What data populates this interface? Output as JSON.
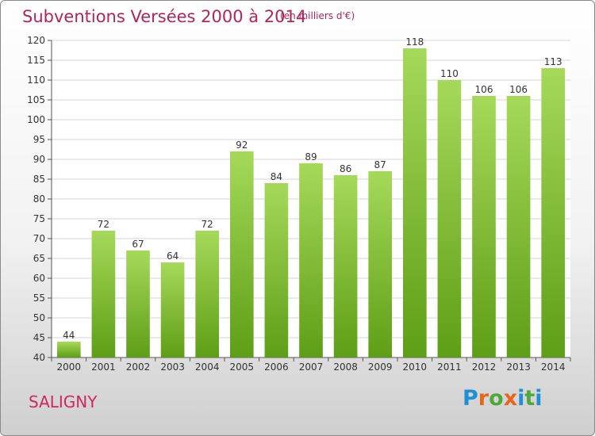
{
  "header": {
    "title": "Subventions Versées 2000 à 2014",
    "unit": "(en milliers d'€)"
  },
  "footer": {
    "commune": "SALIGNY",
    "brand_letters": [
      {
        "char": "P",
        "color": "#1f8fd6"
      },
      {
        "char": "r",
        "color": "#e8661a"
      },
      {
        "char": "o",
        "color": "#4fa83a"
      },
      {
        "char": "x",
        "color": "#e8661a"
      },
      {
        "char": "i",
        "color": "#1f8fd6"
      },
      {
        "char": "t",
        "color": "#4fa83a"
      },
      {
        "char": "i",
        "color": "#1f8fd6"
      }
    ]
  },
  "colors": {
    "title": "#b3245a",
    "bar_top": "#a6d95a",
    "bar_bottom": "#5e9e16",
    "grid": "#d6d6d6"
  },
  "chart_data": {
    "type": "bar",
    "title": "Subventions Versées 2000 à 2014",
    "xlabel": "",
    "ylabel": "",
    "categories": [
      "2000",
      "2001",
      "2002",
      "2003",
      "2004",
      "2005",
      "2006",
      "2007",
      "2008",
      "2009",
      "2010",
      "2011",
      "2012",
      "2013",
      "2014"
    ],
    "values": [
      44,
      72,
      67,
      64,
      72,
      92,
      84,
      89,
      86,
      87,
      118,
      110,
      106,
      106,
      113
    ],
    "ylim": [
      40,
      120
    ],
    "yticks": [
      40,
      45,
      50,
      55,
      60,
      65,
      70,
      75,
      80,
      85,
      90,
      95,
      100,
      105,
      110,
      115,
      120
    ],
    "grid": true,
    "legend": "none"
  }
}
